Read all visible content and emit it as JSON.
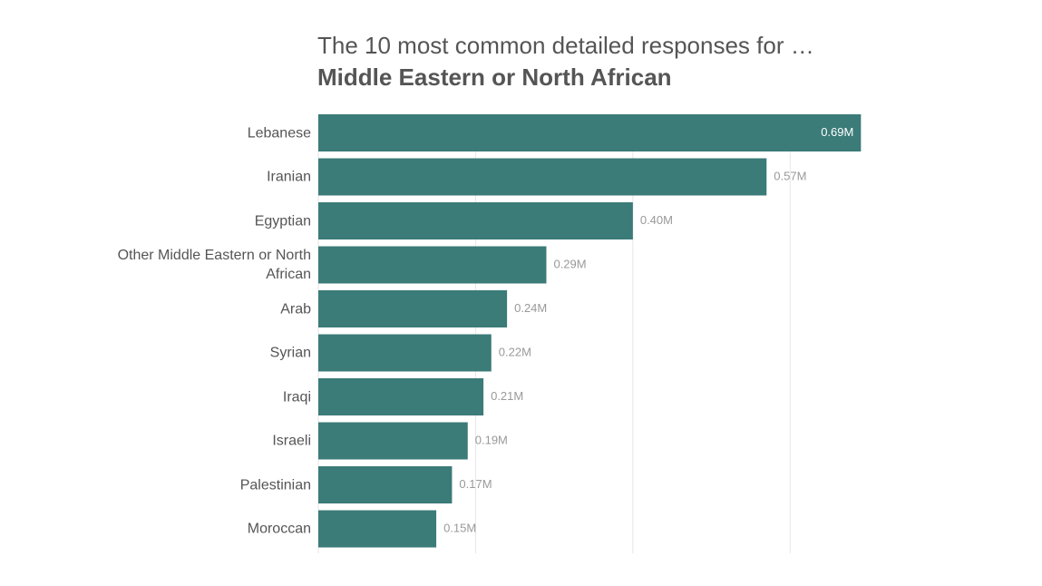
{
  "chart_data": {
    "type": "bar",
    "orientation": "horizontal",
    "title": "The 10 most common detailed responses for …",
    "subtitle": "Middle Eastern or North African",
    "categories": [
      "Lebanese",
      "Iranian",
      "Egyptian",
      "Other Middle Eastern or North African",
      "Arab",
      "Syrian",
      "Iraqi",
      "Israeli",
      "Palestinian",
      "Moroccan"
    ],
    "values": [
      0.69,
      0.57,
      0.4,
      0.29,
      0.24,
      0.22,
      0.21,
      0.19,
      0.17,
      0.15
    ],
    "value_labels": [
      "0.69M",
      "0.57M",
      "0.40M",
      "0.29M",
      "0.24M",
      "0.22M",
      "0.21M",
      "0.19M",
      "0.17M",
      "0.15M"
    ],
    "color": "#3b7b78",
    "xlim": [
      0,
      0.7
    ],
    "xticks": [
      0,
      0.2,
      0.4,
      0.6
    ],
    "grid": true
  }
}
